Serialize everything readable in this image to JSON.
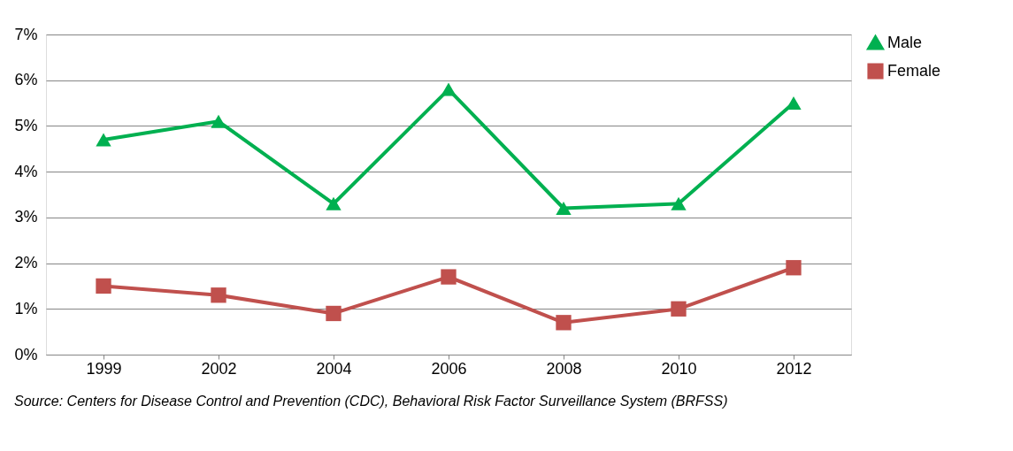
{
  "chart_data": {
    "type": "line",
    "categories": [
      "1999",
      "2002",
      "2004",
      "2006",
      "2008",
      "2010",
      "2012"
    ],
    "series": [
      {
        "name": "Male",
        "color": "#00b050",
        "marker": "triangle",
        "values": [
          4.7,
          5.1,
          3.3,
          5.8,
          3.2,
          3.3,
          5.5
        ]
      },
      {
        "name": "Female",
        "color": "#c0504d",
        "marker": "square",
        "values": [
          1.5,
          1.3,
          0.9,
          1.7,
          0.7,
          1.0,
          1.9
        ]
      }
    ],
    "ylim": [
      0,
      7
    ],
    "yticks": [
      {
        "value": 0,
        "label": "0%"
      },
      {
        "value": 1,
        "label": "1%"
      },
      {
        "value": 2,
        "label": "2%"
      },
      {
        "value": 3,
        "label": "3%"
      },
      {
        "value": 4,
        "label": "4%"
      },
      {
        "value": 5,
        "label": "5%"
      },
      {
        "value": 6,
        "label": "6%"
      },
      {
        "value": 7,
        "label": "7%"
      }
    ],
    "grid": "y",
    "legend": "right",
    "line_style": "solid",
    "annotations": [
      "Source: Centers for Disease Control and Prevention (CDC), Behavioral Risk Factor Surveillance System (BRFSS)"
    ]
  }
}
